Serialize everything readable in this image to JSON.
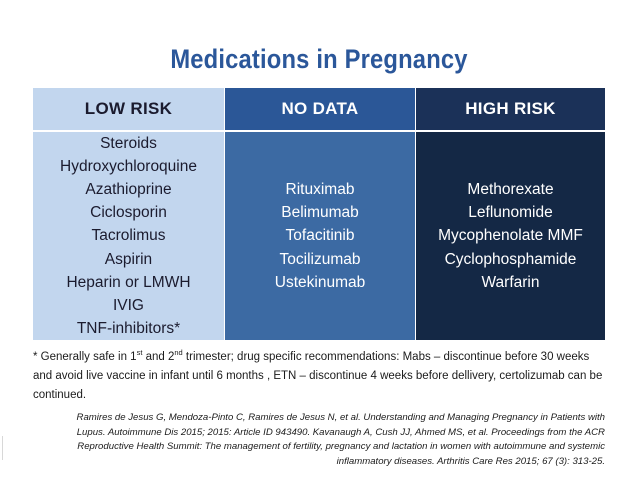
{
  "title": "Medications in Pregnancy",
  "columns": {
    "low": {
      "header": "LOW RISK",
      "items": [
        "Steroids",
        "Hydroxychloroquine",
        "Azathioprine",
        "Ciclosporin",
        "Tacrolimus",
        "Aspirin",
        "Heparin or LMWH",
        "IVIG",
        "TNF-inhibitors*"
      ]
    },
    "none": {
      "header": "NO DATA",
      "items": [
        "Rituximab",
        "Belimumab",
        "Tofacitinib",
        "Tocilizumab",
        "Ustekinumab"
      ]
    },
    "high": {
      "header": "HIGH RISK",
      "items": [
        "Methorexate",
        "Leflunomide",
        "Mycophenolate MMF",
        "Cyclophosphamide",
        "Warfarin"
      ]
    }
  },
  "footnote": {
    "part1": "* Generally safe in 1",
    "sup1": "st",
    "part2": " and 2",
    "sup2": "nd",
    "part3": " trimester; drug specific recommendations: Mabs – discontinue before 30 weeks and avoid live vaccine in infant until 6 months , ETN – discontinue 4 weeks before dellivery, certolizumab can be continued."
  },
  "references": [
    "Ramires de Jesus G, Mendoza-Pinto C, Ramires de Jesus N, et al.  Understanding and Managing Pregnancy in Patients with",
    "Lupus. Autoimmune Dis 2015; 2015: Article ID 943490. Kavanaugh A, Cush JJ, Ahmed MS, et al. Proceedings from the ACR",
    "Reproductive Health Summit: The management of fertility, pregnancy and lactation in women with autoimmune and systemic",
    "inflammatory diseases. Arthritis Care Res 2015; 67 (3): 313-25."
  ]
}
